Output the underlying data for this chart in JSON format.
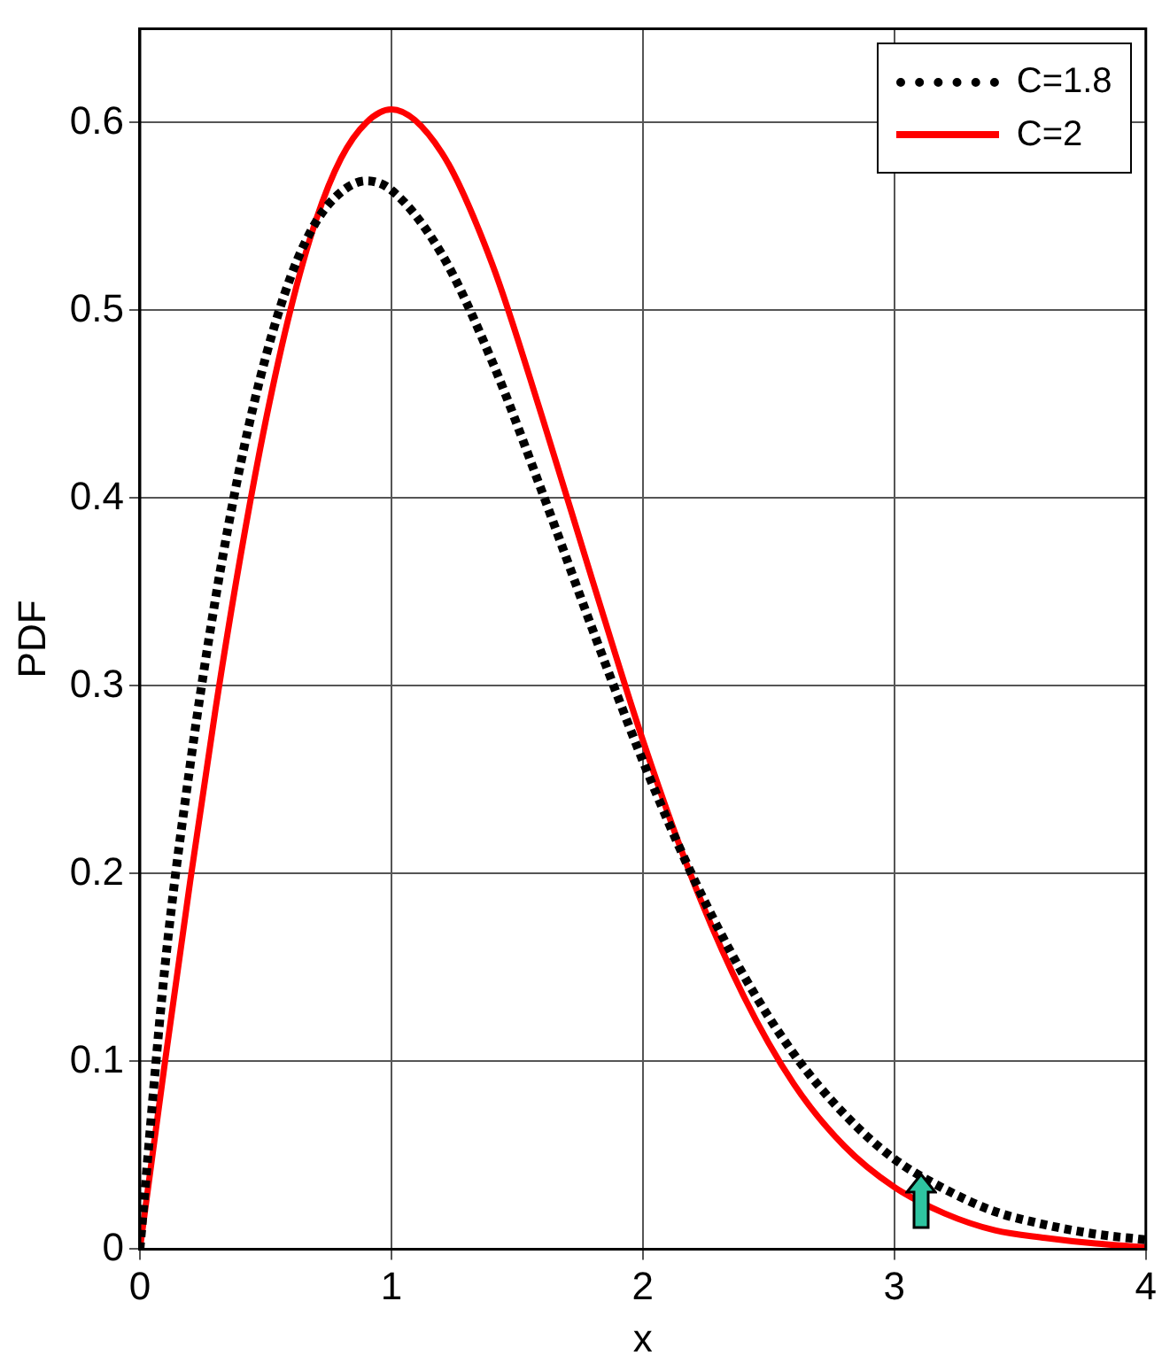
{
  "chart_data": {
    "type": "line",
    "xlabel": "x",
    "ylabel": "PDF",
    "x": [
      0,
      0.1,
      0.2,
      0.3,
      0.4,
      0.5,
      0.6,
      0.7,
      0.8,
      0.9,
      1.0,
      1.2,
      1.4,
      1.6,
      1.8,
      2.0,
      2.2,
      2.4,
      2.6,
      2.8,
      3.0,
      3.2,
      3.4,
      3.6,
      3.8,
      4.0
    ],
    "series": [
      {
        "name": "C=1.8",
        "color": "#000000",
        "line_style": "dotted",
        "values": [
          0,
          0.151,
          0.258,
          0.346,
          0.418,
          0.475,
          0.518,
          0.547,
          0.563,
          0.569,
          0.564,
          0.53,
          0.473,
          0.403,
          0.33,
          0.26,
          0.198,
          0.146,
          0.104,
          0.072,
          0.048,
          0.032,
          0.02,
          0.013,
          0.008,
          0.005
        ]
      },
      {
        "name": "C=2",
        "color": "#ff0000",
        "line_style": "solid",
        "values": [
          0,
          0.1,
          0.196,
          0.287,
          0.369,
          0.441,
          0.501,
          0.548,
          0.581,
          0.6,
          0.607,
          0.584,
          0.525,
          0.443,
          0.356,
          0.271,
          0.196,
          0.135,
          0.088,
          0.055,
          0.033,
          0.019,
          0.01,
          0.006,
          0.003,
          0.001
        ]
      }
    ],
    "xlim": [
      0,
      4
    ],
    "xticks": [
      0,
      1,
      2,
      3,
      4
    ],
    "ylim": [
      0,
      0.65
    ],
    "yticks": [
      0,
      0.1,
      0.2,
      0.3,
      0.4,
      0.5,
      0.6
    ],
    "grid": true,
    "legend": "top right",
    "marker": "none"
  }
}
